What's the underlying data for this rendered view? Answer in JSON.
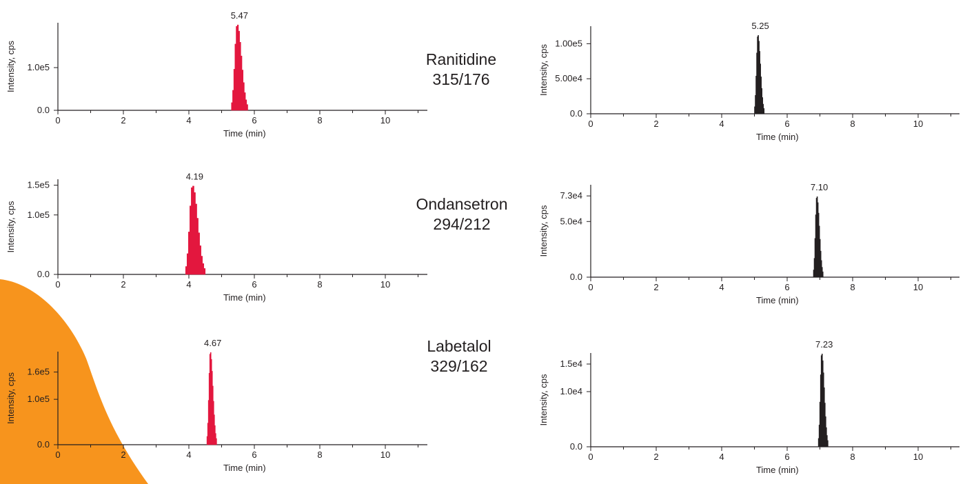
{
  "colors": {
    "red_trace": "#e3173e",
    "black_trace": "#231f20",
    "axis": "#231f20",
    "accent_shape": "#f7941d"
  },
  "compounds": [
    {
      "name": "Ranitidine",
      "transition": "315/176"
    },
    {
      "name": "Ondansetron",
      "transition": "294/212"
    },
    {
      "name": "Labetalol",
      "transition": "329/162"
    }
  ],
  "chart_data": [
    {
      "type": "area",
      "compound": "Ranitidine",
      "side": "left",
      "color": "#e3173e",
      "xlabel": "Time (min)",
      "ylabel": "Intensity, cps",
      "xlim": [
        0,
        11.3
      ],
      "ylim": [
        0,
        205000.0
      ],
      "xticks": [
        "0",
        "2",
        "4",
        "6",
        "8",
        "10"
      ],
      "yticks": [
        {
          "value": 0,
          "label": "0.0"
        },
        {
          "value": 100000,
          "label": "1.0e5"
        }
      ],
      "peak": {
        "rt": 5.47,
        "label": "5.47",
        "height": 202000.0,
        "start": 5.3,
        "end": 5.8
      }
    },
    {
      "type": "area",
      "compound": "Ranitidine",
      "side": "right",
      "color": "#231f20",
      "xlabel": "Time (min)",
      "ylabel": "Intensity, cps",
      "xlim": [
        0,
        11.3
      ],
      "ylim": [
        0,
        125000.0
      ],
      "xticks": [
        "0",
        "2",
        "4",
        "6",
        "8",
        "10"
      ],
      "yticks": [
        {
          "value": 0,
          "label": "0.0"
        },
        {
          "value": 50000,
          "label": "5.00e4"
        },
        {
          "value": 100000,
          "label": "1.00e5"
        }
      ],
      "peak": {
        "rt": 5.25,
        "label": "5.25",
        "height": 113000.0,
        "start": 5.0,
        "end": 5.3
      }
    },
    {
      "type": "area",
      "compound": "Ondansetron",
      "side": "left",
      "color": "#e3173e",
      "xlabel": "Time (min)",
      "ylabel": "Intensity, cps",
      "xlim": [
        0,
        11.3
      ],
      "ylim": [
        0,
        160000.0
      ],
      "xticks": [
        "0",
        "2",
        "4",
        "6",
        "8",
        "10"
      ],
      "yticks": [
        {
          "value": 0,
          "label": "0.0"
        },
        {
          "value": 100000,
          "label": "1.0e5"
        },
        {
          "value": 150000,
          "label": "1.5e5"
        }
      ],
      "peak": {
        "rt": 4.19,
        "label": "4.19",
        "height": 150000.0,
        "start": 3.9,
        "end": 4.5
      }
    },
    {
      "type": "area",
      "compound": "Ondansetron",
      "side": "right",
      "color": "#231f20",
      "xlabel": "Time (min)",
      "ylabel": "Intensity, cps",
      "xlim": [
        0,
        11.3
      ],
      "ylim": [
        0,
        83000.0
      ],
      "xticks": [
        "0",
        "2",
        "4",
        "6",
        "8",
        "10"
      ],
      "yticks": [
        {
          "value": 0,
          "label": "0.0"
        },
        {
          "value": 50000,
          "label": "5.0e4"
        },
        {
          "value": 73000,
          "label": "7.3e4"
        }
      ],
      "peak": {
        "rt": 7.1,
        "label": "7.10",
        "height": 73000.0,
        "start": 6.8,
        "end": 7.1
      }
    },
    {
      "type": "area",
      "compound": "Labetalol",
      "side": "left",
      "color": "#e3173e",
      "xlabel": "Time (min)",
      "ylabel": "Intensity, cps",
      "xlim": [
        0,
        11.3
      ],
      "ylim": [
        0,
        205000.0
      ],
      "xticks": [
        "0",
        "2",
        "4",
        "6",
        "8",
        "10"
      ],
      "yticks": [
        {
          "value": 0,
          "label": "0.0"
        },
        {
          "value": 100000,
          "label": "1.0e5"
        },
        {
          "value": 160000,
          "label": "1.6e5"
        }
      ],
      "peak": {
        "rt": 4.67,
        "label": "4.67",
        "height": 205000.0,
        "start": 4.55,
        "end": 4.85
      }
    },
    {
      "type": "area",
      "compound": "Labetalol",
      "side": "right",
      "color": "#231f20",
      "xlabel": "Time (min)",
      "ylabel": "Intensity, cps",
      "xlim": [
        0,
        11.3
      ],
      "ylim": [
        0,
        17000.0
      ],
      "xticks": [
        "0",
        "2",
        "4",
        "6",
        "8",
        "10"
      ],
      "yticks": [
        {
          "value": 0,
          "label": "0.0"
        },
        {
          "value": 10000,
          "label": "1.0e4"
        },
        {
          "value": 15000,
          "label": "1.5e4"
        }
      ],
      "peak": {
        "rt": 7.23,
        "label": "7.23",
        "height": 17000.0,
        "start": 6.95,
        "end": 7.25
      }
    }
  ]
}
